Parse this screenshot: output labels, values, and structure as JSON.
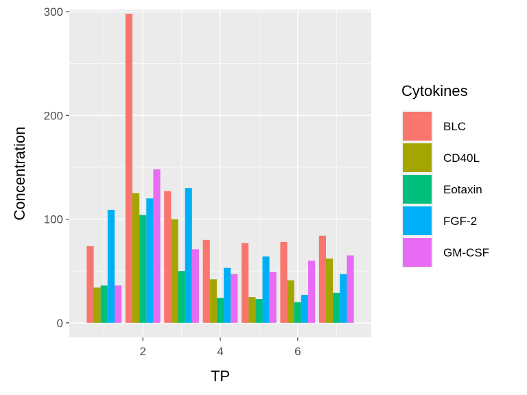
{
  "chart_data": {
    "type": "bar",
    "x": [
      1,
      2,
      3,
      4,
      5,
      6,
      7
    ],
    "xlabel": "TP",
    "ylabel": "Concentration",
    "xticks": [
      2,
      4,
      6
    ],
    "yticks": [
      0,
      100,
      200,
      300
    ],
    "xlim": [
      0.1,
      7.9
    ],
    "ylim": [
      -14,
      302
    ],
    "grid": true,
    "legend": {
      "title": "Cytokines",
      "placement": "right"
    },
    "series": [
      {
        "name": "BLC",
        "color": "#F8766D",
        "values": [
          74,
          298,
          127,
          80,
          77,
          78,
          84
        ]
      },
      {
        "name": "CD40L",
        "color": "#A3A500",
        "values": [
          34,
          125,
          100,
          42,
          25,
          41,
          62
        ]
      },
      {
        "name": "Eotaxin",
        "color": "#00BF7D",
        "values": [
          36,
          104,
          50,
          24,
          23,
          20,
          29
        ]
      },
      {
        "name": "FGF-2",
        "color": "#00B0F6",
        "values": [
          109,
          120,
          130,
          53,
          64,
          27,
          47
        ]
      },
      {
        "name": "GM-CSF",
        "color": "#E76BF3",
        "values": [
          36,
          148,
          71,
          47,
          49,
          60,
          65
        ]
      }
    ]
  }
}
